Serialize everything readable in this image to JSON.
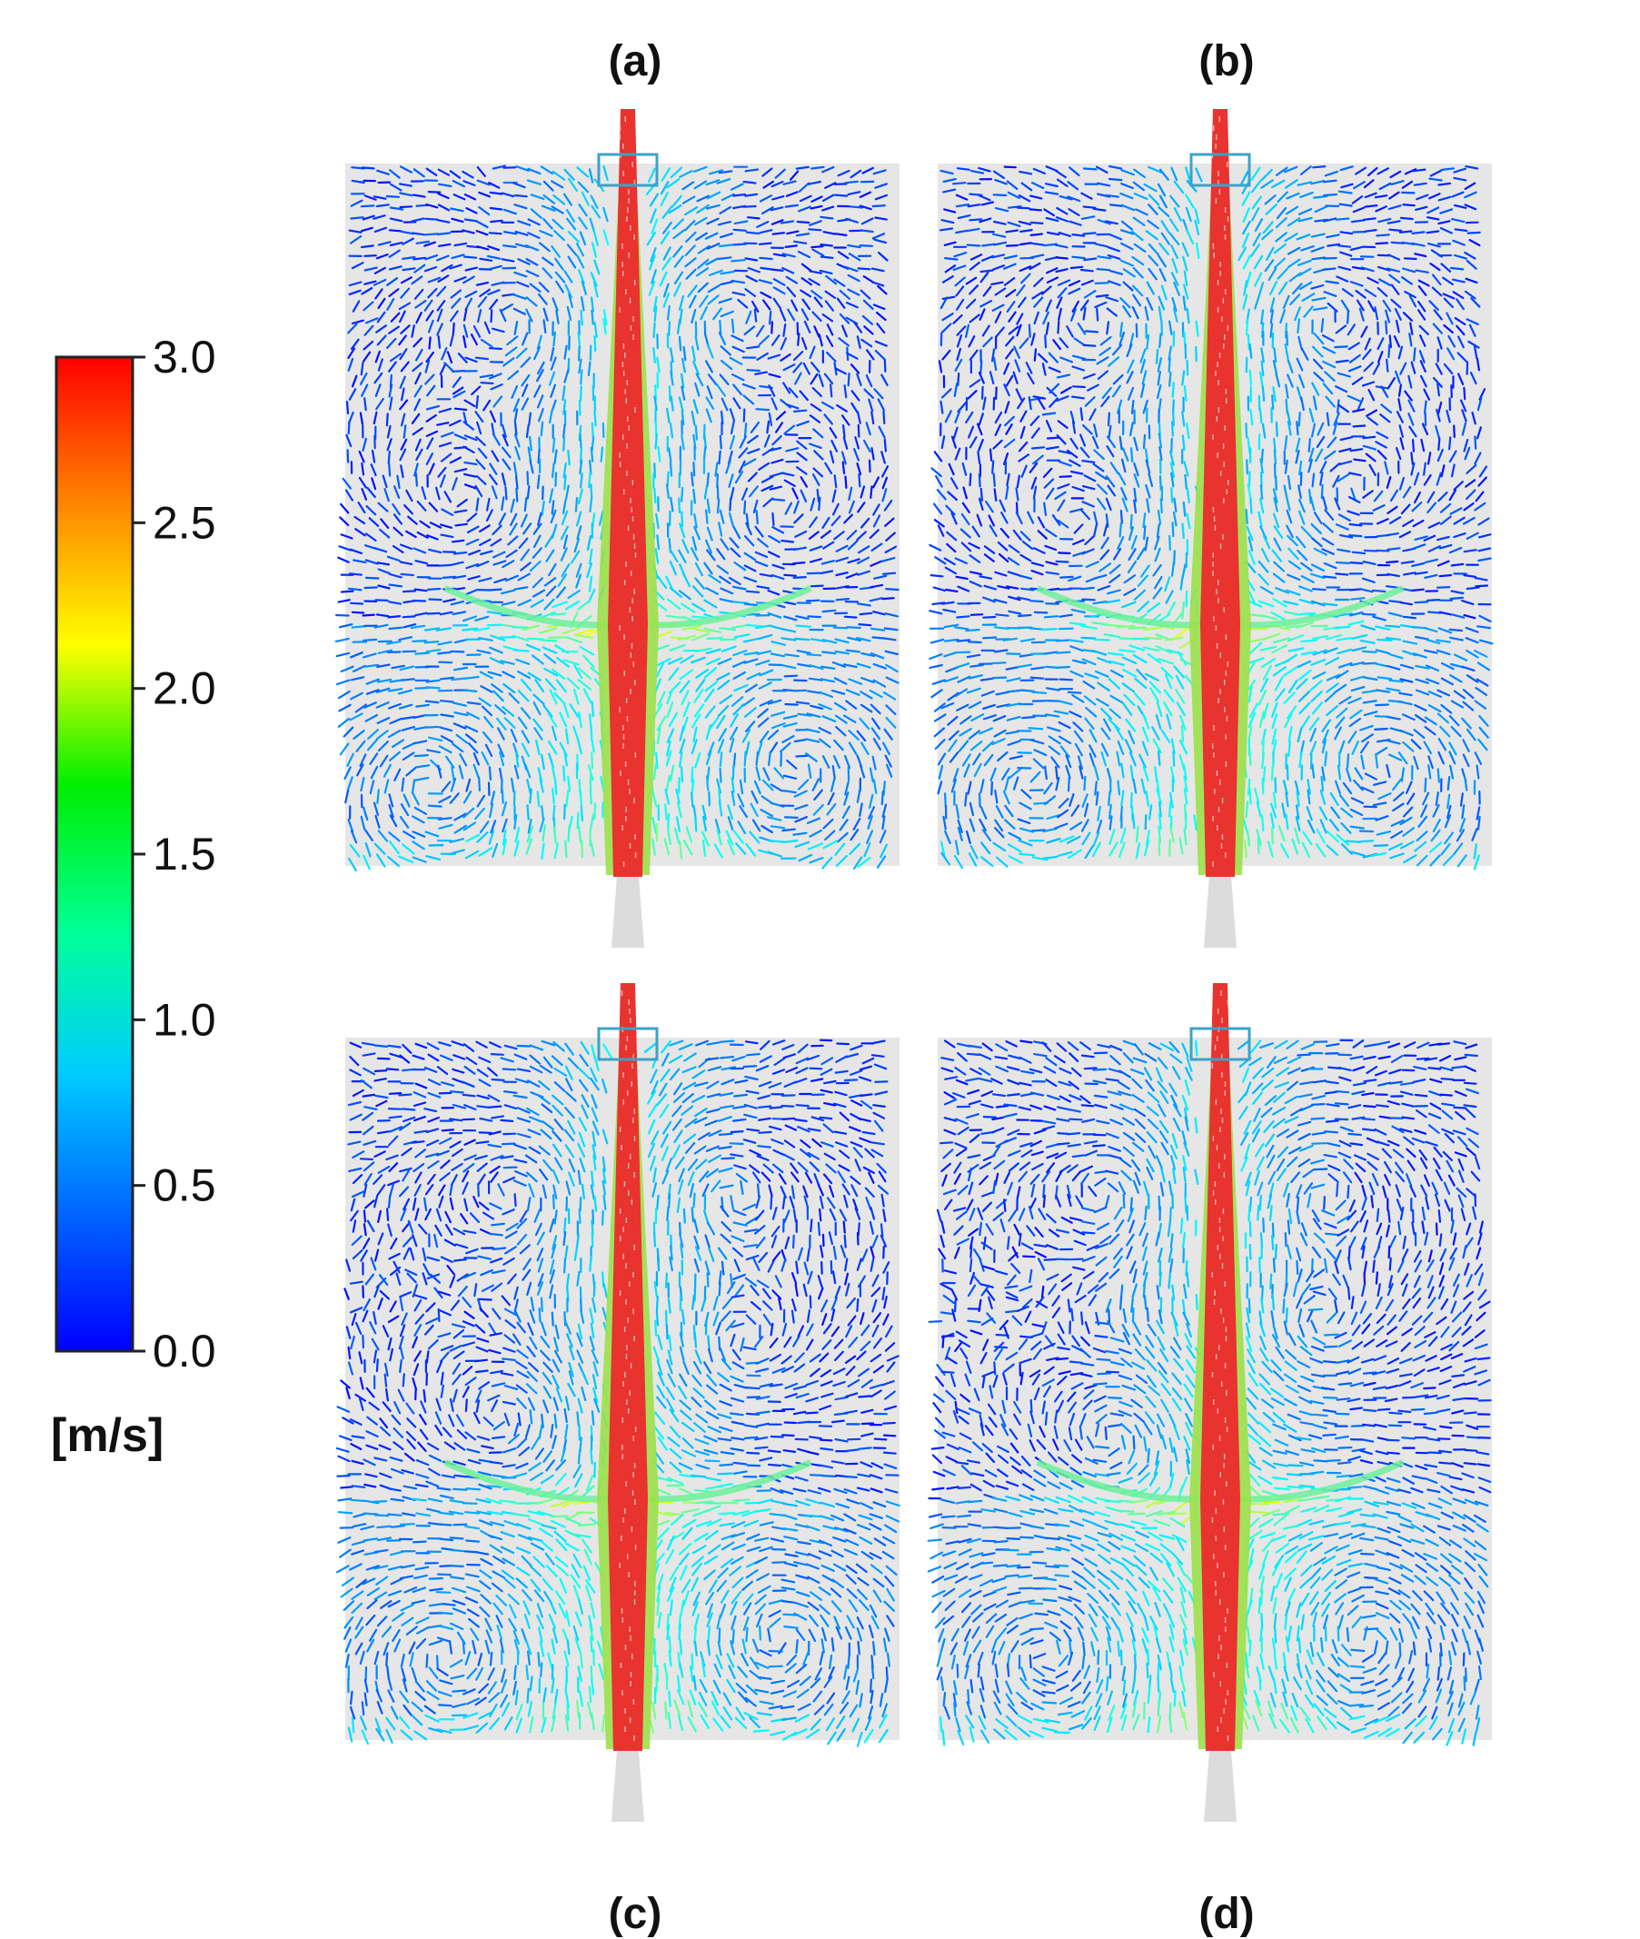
{
  "figure": {
    "panels": [
      {
        "id": "a",
        "label": "(a)",
        "variant": 0
      },
      {
        "id": "b",
        "label": "(b)",
        "variant": 1
      },
      {
        "id": "c",
        "label": "(c)",
        "variant": 2
      },
      {
        "id": "d",
        "label": "(d)",
        "variant": 3
      }
    ],
    "colorbar": {
      "min": 0.0,
      "max": 3.0,
      "ticks": [
        "0.0",
        "0.5",
        "1.0",
        "1.5",
        "2.0",
        "2.5",
        "3.0"
      ],
      "unit": "[m/s]",
      "colormap": [
        "#0000ff",
        "#0080ff",
        "#00ffff",
        "#00ff80",
        "#00ff00",
        "#ffff00",
        "#ff8000",
        "#ff0000"
      ]
    },
    "colors": {
      "jet_core": "#e8332e",
      "nozzle": "#dcdcdc",
      "vessel_bg": "#cfcfcf"
    }
  }
}
